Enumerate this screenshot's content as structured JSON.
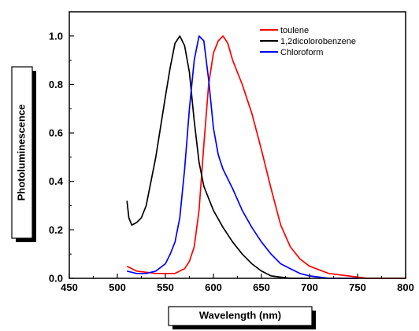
{
  "chart_data": {
    "type": "line",
    "title": "",
    "xlabel": "Wavelength (nm)",
    "ylabel": "Photoluminescence",
    "xlim": [
      450,
      800
    ],
    "ylim": [
      0.0,
      1.1
    ],
    "xticks": [
      "450",
      "500",
      "550",
      "600",
      "650",
      "700",
      "750",
      "800"
    ],
    "yticks": [
      "0.0",
      "0.2",
      "0.4",
      "0.6",
      "0.8",
      "1.0"
    ],
    "legend_position": "top-right",
    "grid": false,
    "series": [
      {
        "name": "toulene",
        "color": "#ff0000",
        "x": [
          510,
          520,
          540,
          560,
          570,
          575,
          580,
          585,
          590,
          595,
          600,
          605,
          610,
          615,
          620,
          630,
          640,
          650,
          660,
          670,
          680,
          690,
          700,
          720,
          740,
          760,
          780,
          800
        ],
        "y": [
          0.05,
          0.03,
          0.02,
          0.02,
          0.04,
          0.07,
          0.13,
          0.28,
          0.55,
          0.8,
          0.93,
          0.98,
          1.0,
          0.97,
          0.9,
          0.8,
          0.68,
          0.53,
          0.37,
          0.22,
          0.13,
          0.08,
          0.05,
          0.02,
          0.01,
          0.0,
          0.0,
          0.0
        ]
      },
      {
        "name": "1,2dicolorobenzene",
        "color": "#000000",
        "x": [
          510,
          512,
          515,
          520,
          525,
          530,
          540,
          550,
          555,
          560,
          565,
          570,
          575,
          580,
          585,
          590,
          600,
          610,
          620,
          630,
          640,
          650,
          660,
          670,
          680,
          700
        ],
        "y": [
          0.32,
          0.25,
          0.22,
          0.23,
          0.25,
          0.3,
          0.5,
          0.75,
          0.87,
          0.97,
          1.0,
          0.96,
          0.85,
          0.65,
          0.48,
          0.38,
          0.28,
          0.21,
          0.15,
          0.1,
          0.06,
          0.03,
          0.01,
          0.005,
          0.0,
          0.0
        ]
      },
      {
        "name": "Chloroform",
        "color": "#0000ff",
        "x": [
          510,
          520,
          530,
          540,
          550,
          555,
          560,
          565,
          570,
          575,
          580,
          585,
          590,
          595,
          600,
          605,
          610,
          620,
          630,
          640,
          650,
          660,
          670,
          680,
          690,
          700,
          720,
          750
        ],
        "y": [
          0.03,
          0.02,
          0.02,
          0.03,
          0.06,
          0.1,
          0.15,
          0.25,
          0.45,
          0.7,
          0.9,
          1.0,
          0.98,
          0.82,
          0.62,
          0.51,
          0.45,
          0.37,
          0.28,
          0.21,
          0.15,
          0.1,
          0.06,
          0.04,
          0.02,
          0.01,
          0.0,
          0.0
        ]
      }
    ]
  }
}
